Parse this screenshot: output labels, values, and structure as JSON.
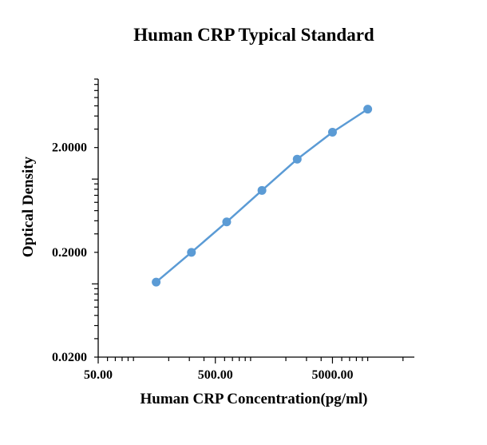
{
  "chart_data": {
    "type": "scatter",
    "title": "Human CRP Typical Standard",
    "xlabel": "Human CRP Concentration(pg/ml)",
    "ylabel": "Optical Density",
    "x_scale": "log",
    "y_scale": "log",
    "xlim": [
      50,
      25000
    ],
    "ylim": [
      0.02,
      9
    ],
    "x_tick_labels": [
      {
        "value": 50,
        "label": "50.00"
      },
      {
        "value": 500,
        "label": "500.00"
      },
      {
        "value": 5000,
        "label": "5000.00"
      }
    ],
    "y_tick_labels": [
      {
        "value": 0.02,
        "label": "0.0200"
      },
      {
        "value": 0.2,
        "label": "0.2000"
      },
      {
        "value": 2,
        "label": "2.0000"
      }
    ],
    "grid": false,
    "legend": "none",
    "series": [
      {
        "color": "#5b9bd5",
        "marker": "circle",
        "connected": true,
        "points": [
          {
            "x": 156.25,
            "y": 0.104
          },
          {
            "x": 312.5,
            "y": 0.2
          },
          {
            "x": 625,
            "y": 0.39
          },
          {
            "x": 1250,
            "y": 0.78
          },
          {
            "x": 2500,
            "y": 1.55
          },
          {
            "x": 5000,
            "y": 2.8
          },
          {
            "x": 10000,
            "y": 4.65
          }
        ]
      }
    ]
  }
}
